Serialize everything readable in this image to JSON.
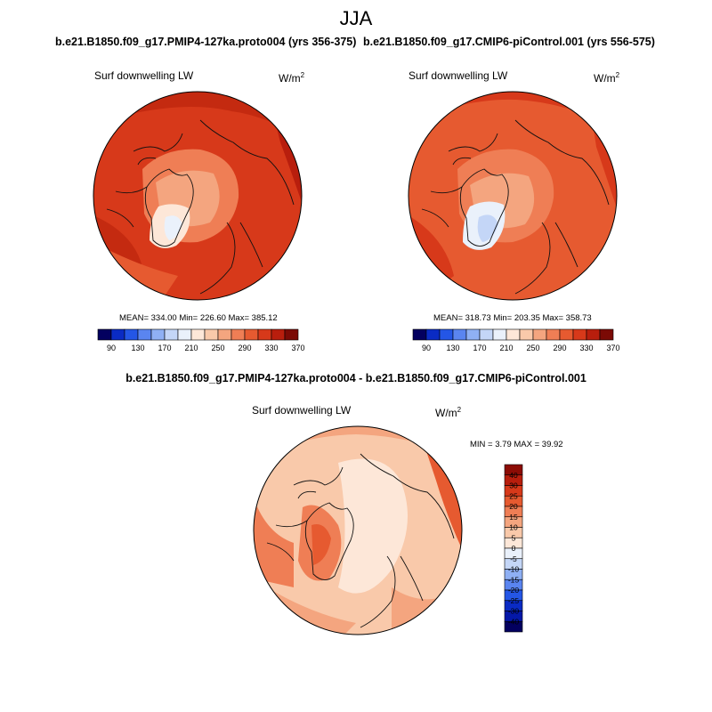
{
  "page": {
    "title": "JJA",
    "difference_title": "b.e21.B1850.f09_g17.PMIP4-127ka.proto004 - b.e21.B1850.f09_g17.CMIP6-piControl.001"
  },
  "panels": [
    {
      "title": "b.e21.B1850.f09_g17.PMIP4-127ka.proto004 (yrs 356-375)",
      "variable": "Surf downwelling LW",
      "units_base": "W/m",
      "units_exp": "2",
      "stats": "MEAN= 334.00  Min= 226.60  Max= 385.12"
    },
    {
      "title": "b.e21.B1850.f09_g17.CMIP6-piControl.001 (yrs 556-575)",
      "variable": "Surf downwelling LW",
      "units_base": "W/m",
      "units_exp": "2",
      "stats": "MEAN= 318.73  Min= 203.35  Max= 358.73"
    },
    {
      "variable": "Surf downwelling LW",
      "units_base": "W/m",
      "units_exp": "2",
      "stats": "MIN =   3.79 MAX =  39.92"
    }
  ],
  "colorbar_top": {
    "labels": [
      "90",
      "130",
      "170",
      "210",
      "250",
      "290",
      "330",
      "370"
    ],
    "colors": [
      "#03005f",
      "#0a2bc4",
      "#2456e6",
      "#5a85f0",
      "#8fb0f4",
      "#c4d6f7",
      "#eaf1fb",
      "#fde7d8",
      "#f9c9aa",
      "#f4a57f",
      "#ef7e55",
      "#e65a30",
      "#d7391a",
      "#b81e0d",
      "#7b0a05"
    ]
  },
  "colorbar_diff": {
    "labels": [
      "40",
      "30",
      "25",
      "20",
      "15",
      "10",
      "5",
      "0",
      "-5",
      "-10",
      "-15",
      "-20",
      "-25",
      "-30",
      "-40"
    ],
    "colors": [
      "#8c0c05",
      "#b81e0d",
      "#d7391a",
      "#e65a30",
      "#ef7e55",
      "#f4a57f",
      "#f9c9aa",
      "#fde7d8",
      "#eaf1fb",
      "#c4d6f7",
      "#8fb0f4",
      "#5a85f0",
      "#2456e6",
      "#0a2bc4",
      "#0418a8",
      "#03005f"
    ]
  }
}
